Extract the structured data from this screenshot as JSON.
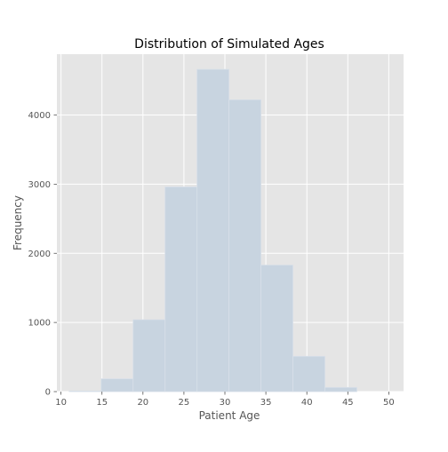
{
  "chart_data": {
    "type": "bar",
    "title": "Distribution of Simulated Ages",
    "xlabel": "Patient Age",
    "ylabel": "Frequency",
    "xlim": [
      9.5,
      51.8
    ],
    "ylim": [
      0,
      4880
    ],
    "xticks": [
      10,
      15,
      20,
      25,
      30,
      35,
      40,
      45,
      50
    ],
    "yticks": [
      0,
      1000,
      2000,
      3000,
      4000
    ],
    "bins": [
      {
        "x0": 11.0,
        "x1": 14.9,
        "value": 8
      },
      {
        "x0": 14.9,
        "x1": 18.8,
        "value": 185
      },
      {
        "x0": 18.8,
        "x1": 22.7,
        "value": 1040
      },
      {
        "x0": 22.7,
        "x1": 26.6,
        "value": 2960
      },
      {
        "x0": 26.6,
        "x1": 30.5,
        "value": 4660
      },
      {
        "x0": 30.5,
        "x1": 34.4,
        "value": 4220
      },
      {
        "x0": 34.4,
        "x1": 38.3,
        "value": 1830
      },
      {
        "x0": 38.3,
        "x1": 42.2,
        "value": 510
      },
      {
        "x0": 42.2,
        "x1": 46.1,
        "value": 60
      }
    ],
    "grid": true,
    "colors": {
      "background": "#e5e5e5",
      "grid": "#ffffff",
      "bar": "#c8d4e0",
      "bar_edge": "#d7dfe8"
    }
  }
}
